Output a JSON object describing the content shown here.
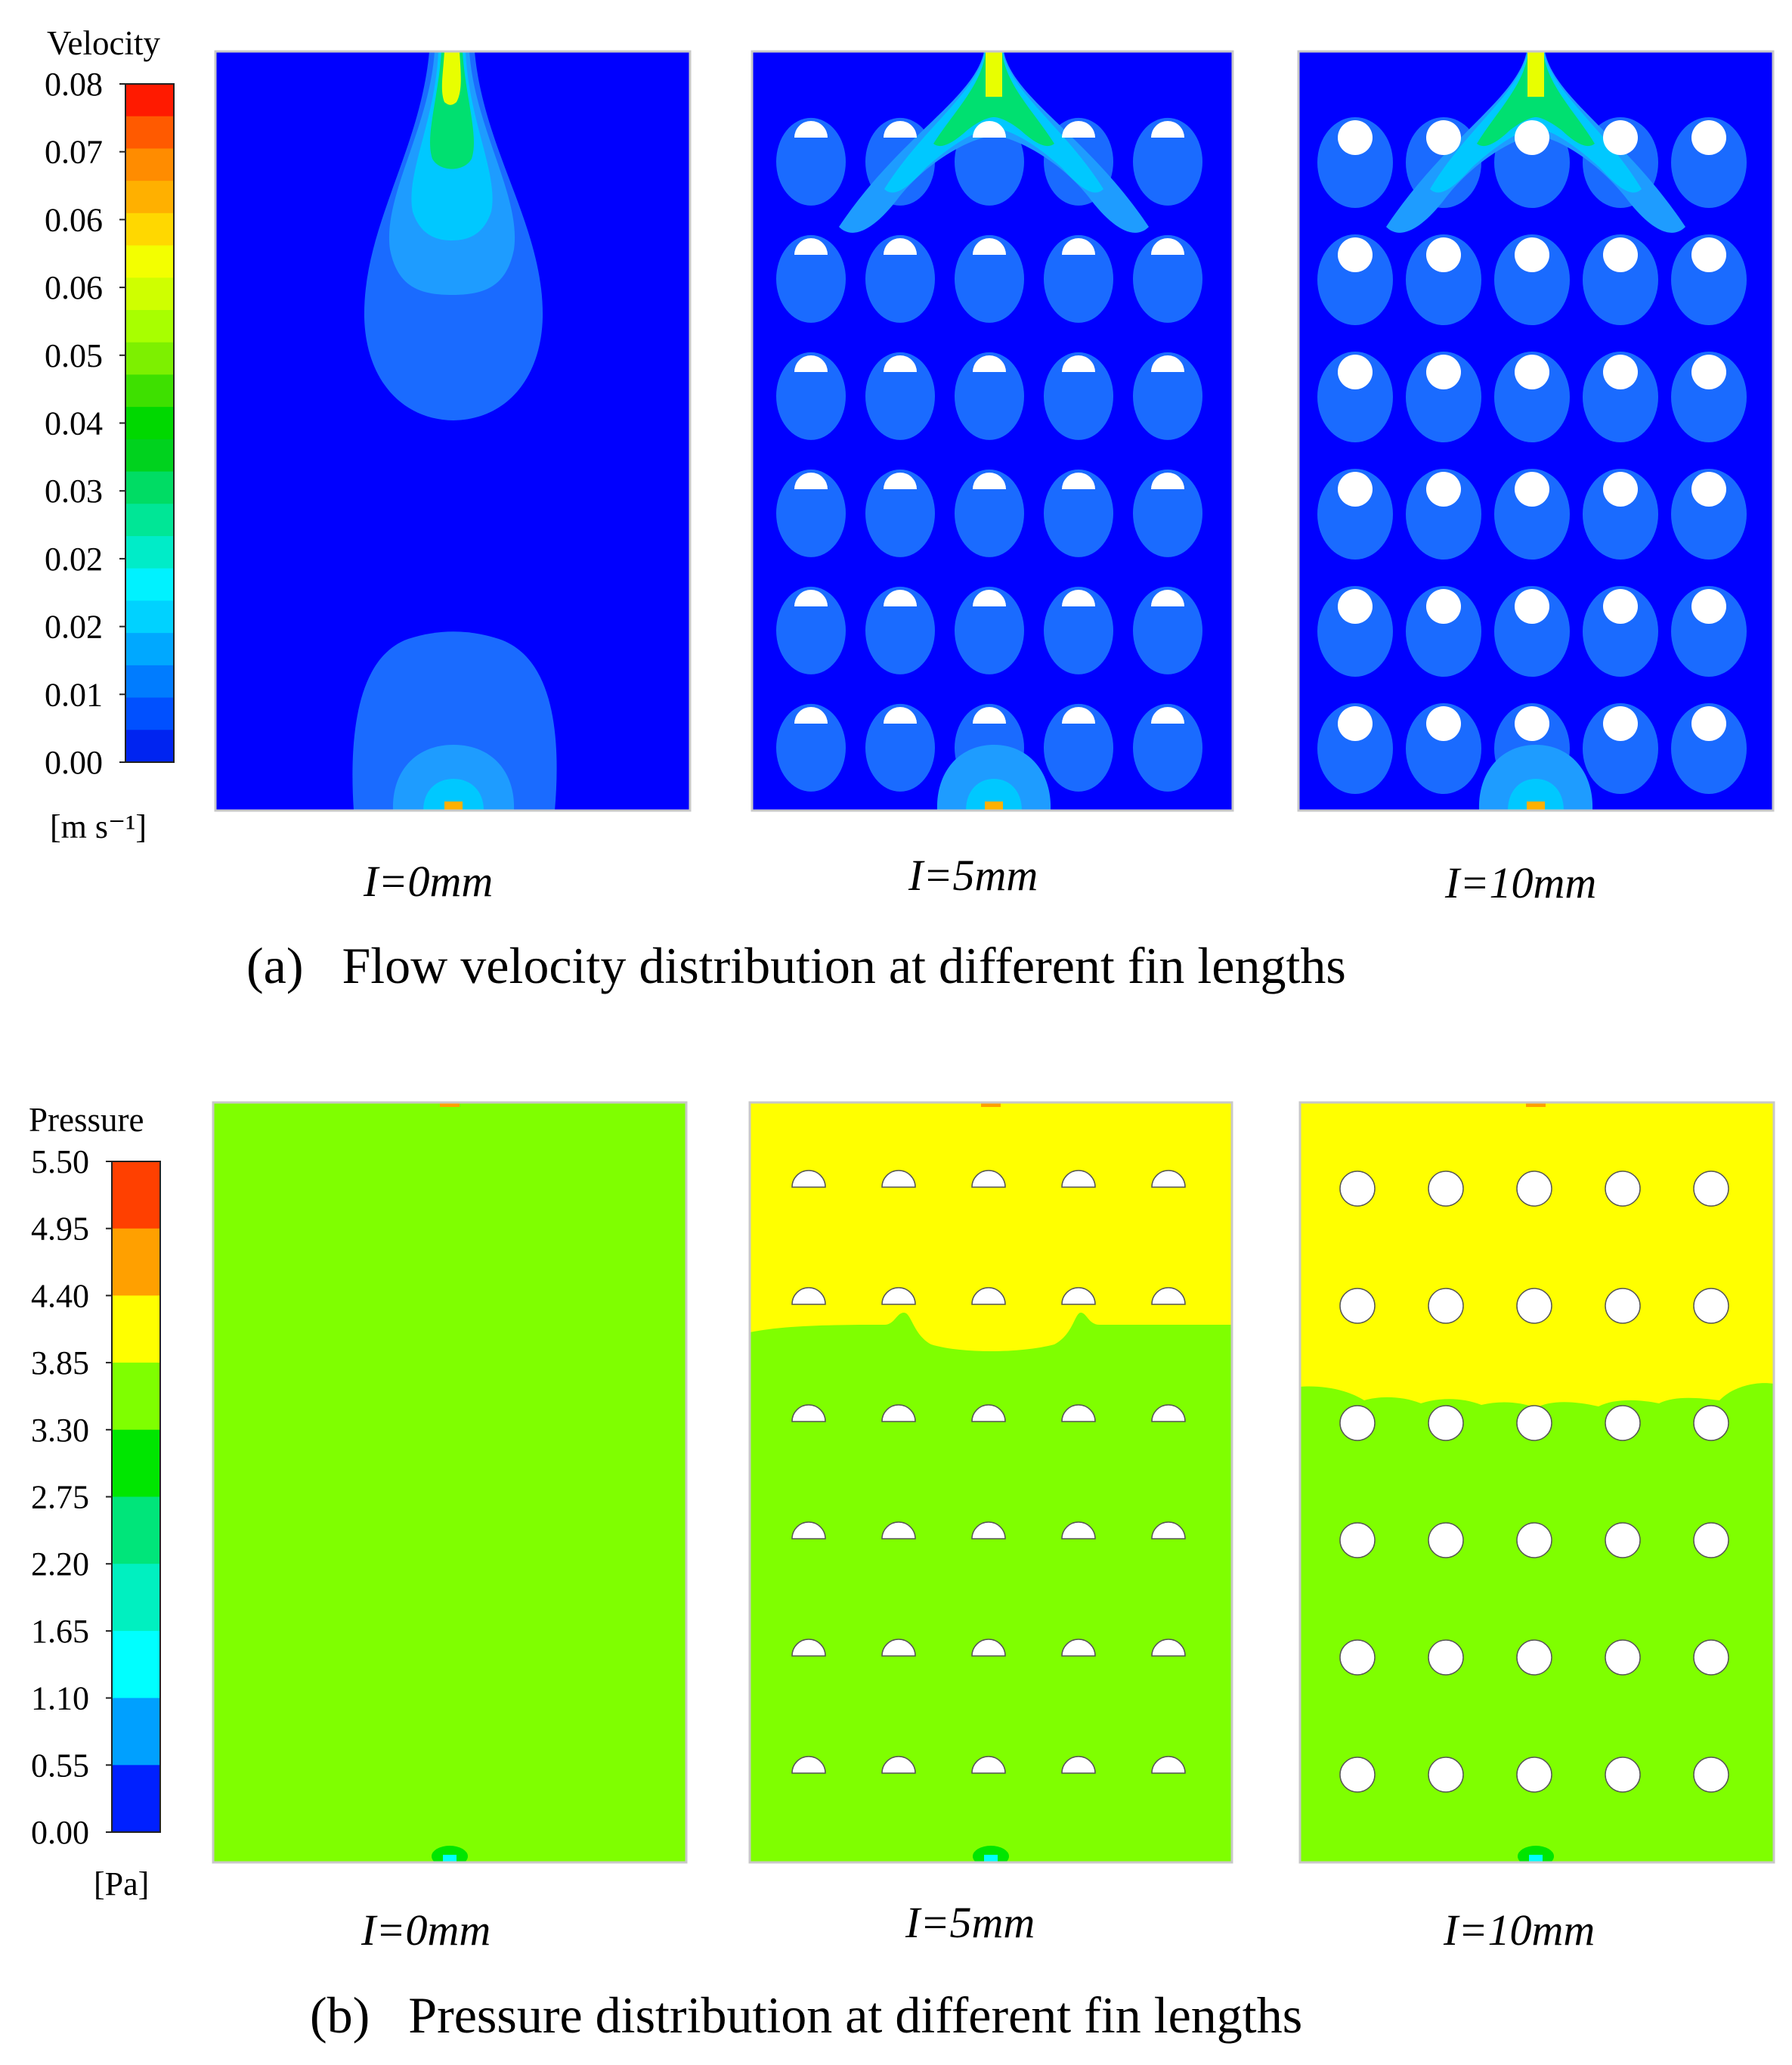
{
  "figure": {
    "velocity": {
      "legend_title": "Velocity",
      "unit_text": "[m s⁻¹]",
      "tick_labels": [
        "0.08",
        "0.07",
        "0.06",
        "0.06",
        "0.05",
        "0.04",
        "0.03",
        "0.02",
        "0.02",
        "0.01",
        "0.00"
      ],
      "colors": [
        "#ff1a00",
        "#ff5a00",
        "#ff8c00",
        "#ffb000",
        "#ffd800",
        "#f3ff00",
        "#cfff00",
        "#a8ff00",
        "#7df000",
        "#3ee000",
        "#00d800",
        "#00d21e",
        "#00dc64",
        "#00e696",
        "#00ecc8",
        "#00f2ff",
        "#00d2ff",
        "#00a8ff",
        "#007cff",
        "#0050ff",
        "#0024f0"
      ],
      "panels": [
        "I=0mm",
        "I=5mm",
        "I=10mm"
      ],
      "caption": "(a)   Flow velocity distribution at different fin lengths"
    },
    "pressure": {
      "legend_title": "Pressure",
      "unit_text": "[Pa]",
      "tick_labels": [
        "5.50",
        "4.95",
        "4.40",
        "3.85",
        "3.30",
        "2.75",
        "2.20",
        "1.65",
        "1.10",
        "0.55",
        "0.00"
      ],
      "colors": [
        "#ff4000",
        "#ffa000",
        "#ffff00",
        "#7fff00",
        "#00e600",
        "#00e57a",
        "#00f0c0",
        "#00ffff",
        "#00a0ff",
        "#0020ff"
      ],
      "panels": [
        "I=0mm",
        "I=5mm",
        "I=10mm"
      ],
      "caption": "(b)   Pressure distribution at different fin lengths"
    },
    "field_colors": {
      "velocity_background": "#0000ff",
      "velocity_low": "#1a6bff",
      "velocity_mid": "#00c8ff",
      "velocity_high": "#00e060",
      "velocity_peak": "#ffff00",
      "pressure_low": "#7fff00",
      "pressure_high": "#ffff00"
    }
  }
}
